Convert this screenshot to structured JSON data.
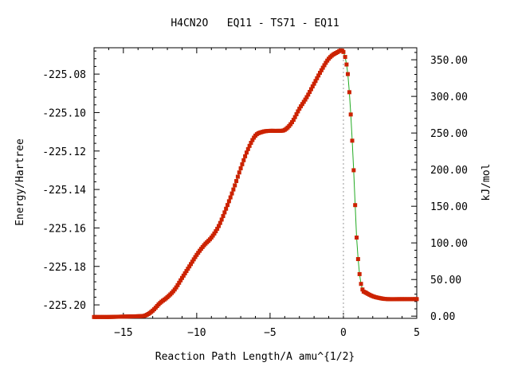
{
  "chart_data": {
    "type": "scatter",
    "title": "H4CN2O   EQ11 - TS71 - EQ11",
    "xlabel": "Reaction Path Length/A amu^{1/2}",
    "ylabel": "Energy/Hartree",
    "y2label": "kJ/mol",
    "xlim": [
      -17,
      5
    ],
    "ylim": [
      -225.207,
      -225.0663
    ],
    "y2lim": [
      -3.0,
      366.4
    ],
    "x_ticks": [
      -15,
      -10,
      -5,
      0,
      5
    ],
    "x_tick_labels": [
      "−15",
      "−10",
      "−5",
      "0",
      "5"
    ],
    "y_ticks": [
      -225.08,
      -225.1,
      -225.12,
      -225.14,
      -225.16,
      -225.18,
      -225.2
    ],
    "y_tick_labels": [
      "-225.08",
      "-225.10",
      "-225.12",
      "-225.14",
      "-225.16",
      "-225.18",
      "-225.20"
    ],
    "y2_ticks": [
      0,
      50,
      100,
      150,
      200,
      250,
      300,
      350
    ],
    "y2_tick_labels": [
      "0.00",
      "50.00",
      "100.00",
      "150.00",
      "200.00",
      "250.00",
      "300.00",
      "350.00"
    ],
    "ts_marker_x": 0,
    "grid": false,
    "series": [
      {
        "color": "#22aa22",
        "marker_color": "#cc2200",
        "x": [
          -17.0,
          -16.5,
          -16.0,
          -15.5,
          -15.0,
          -14.5,
          -14.0,
          -13.5,
          -13.0,
          -12.5,
          -12.0,
          -11.5,
          -11.0,
          -10.5,
          -10.0,
          -9.5,
          -9.0,
          -8.5,
          -8.0,
          -7.5,
          -7.0,
          -6.5,
          -6.0,
          -5.5,
          -5.0,
          -4.5,
          -4.0,
          -3.5,
          -3.0,
          -2.5,
          -2.0,
          -1.5,
          -1.0,
          -0.5,
          0.0,
          0.3,
          0.5,
          0.7,
          0.9,
          1.1,
          1.3,
          1.5,
          2.0,
          2.5,
          3.0,
          4.0,
          5.0
        ],
        "y": [
          -225.2063,
          -225.2063,
          -225.2063,
          -225.2062,
          -225.2061,
          -225.206,
          -225.2059,
          -225.2055,
          -225.203,
          -225.199,
          -225.196,
          -225.192,
          -225.186,
          -225.18,
          -225.174,
          -225.169,
          -225.165,
          -225.159,
          -225.15,
          -225.14,
          -225.129,
          -225.119,
          -225.112,
          -225.11,
          -225.1095,
          -225.1095,
          -225.109,
          -225.105,
          -225.098,
          -225.092,
          -225.085,
          -225.078,
          -225.072,
          -225.069,
          -225.0685,
          -225.08,
          -225.101,
          -225.13,
          -225.165,
          -225.184,
          -225.192,
          -225.1935,
          -225.1955,
          -225.1965,
          -225.197,
          -225.197,
          -225.197
        ]
      }
    ]
  }
}
